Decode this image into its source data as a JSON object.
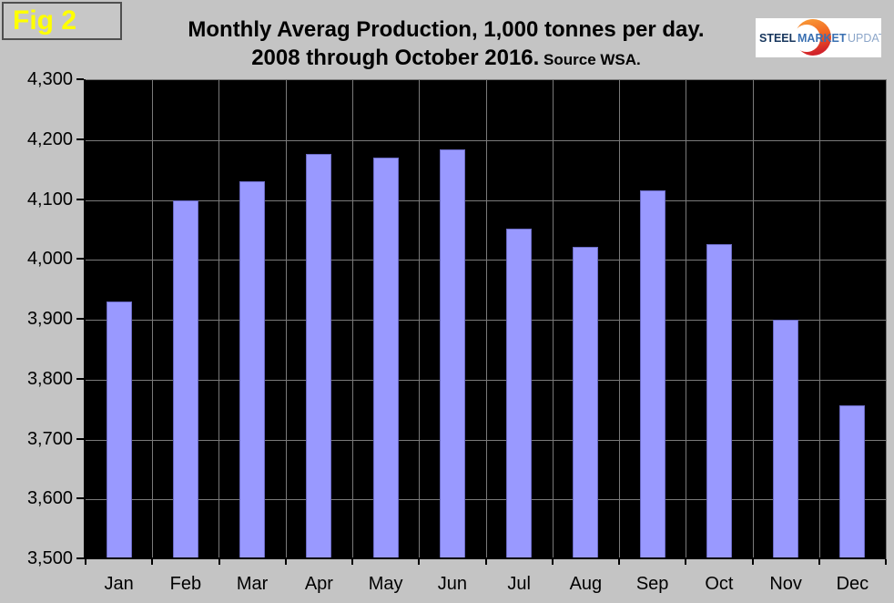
{
  "figure_label": "Fig 2",
  "title": {
    "line1": "Monthly Averag Production, 1,000 tonnes per day.",
    "line2": "2008 through October 2016.",
    "source": " Source WSA."
  },
  "logo": {
    "word1": "STEEL",
    "word2": "MARKET",
    "word3": "UPDATE"
  },
  "colors": {
    "background": "#C4C4C4",
    "plot_background": "#000000",
    "gridline": "#7A7A7A",
    "bar_fill": "#9999FF",
    "bar_border": "#6B6BC4",
    "figure_label_text": "#FFFF00",
    "logo_steel": "#17365D",
    "logo_market": "#3A70B2",
    "logo_update": "#8CA6C9",
    "logo_orange_top": "#F9A13A",
    "logo_orange_bottom": "#D2232A"
  },
  "chart_data": {
    "type": "bar",
    "title": "Monthly Averag Production, 1,000 tonnes per day. 2008 through October 2016. Source WSA.",
    "categories": [
      "Jan",
      "Feb",
      "Mar",
      "Apr",
      "May",
      "Jun",
      "Jul",
      "Aug",
      "Sep",
      "Oct",
      "Nov",
      "Dec"
    ],
    "values": [
      3930,
      4100,
      4131,
      4177,
      4171,
      4184,
      4052,
      4022,
      4116,
      4026,
      3900,
      3757
    ],
    "xlabel": "",
    "ylabel": "",
    "ylim": [
      3500,
      4300
    ],
    "ytick_step": 100,
    "grid": true,
    "legend_position": "none",
    "plot_area_style": "black background with gray gridlines"
  }
}
